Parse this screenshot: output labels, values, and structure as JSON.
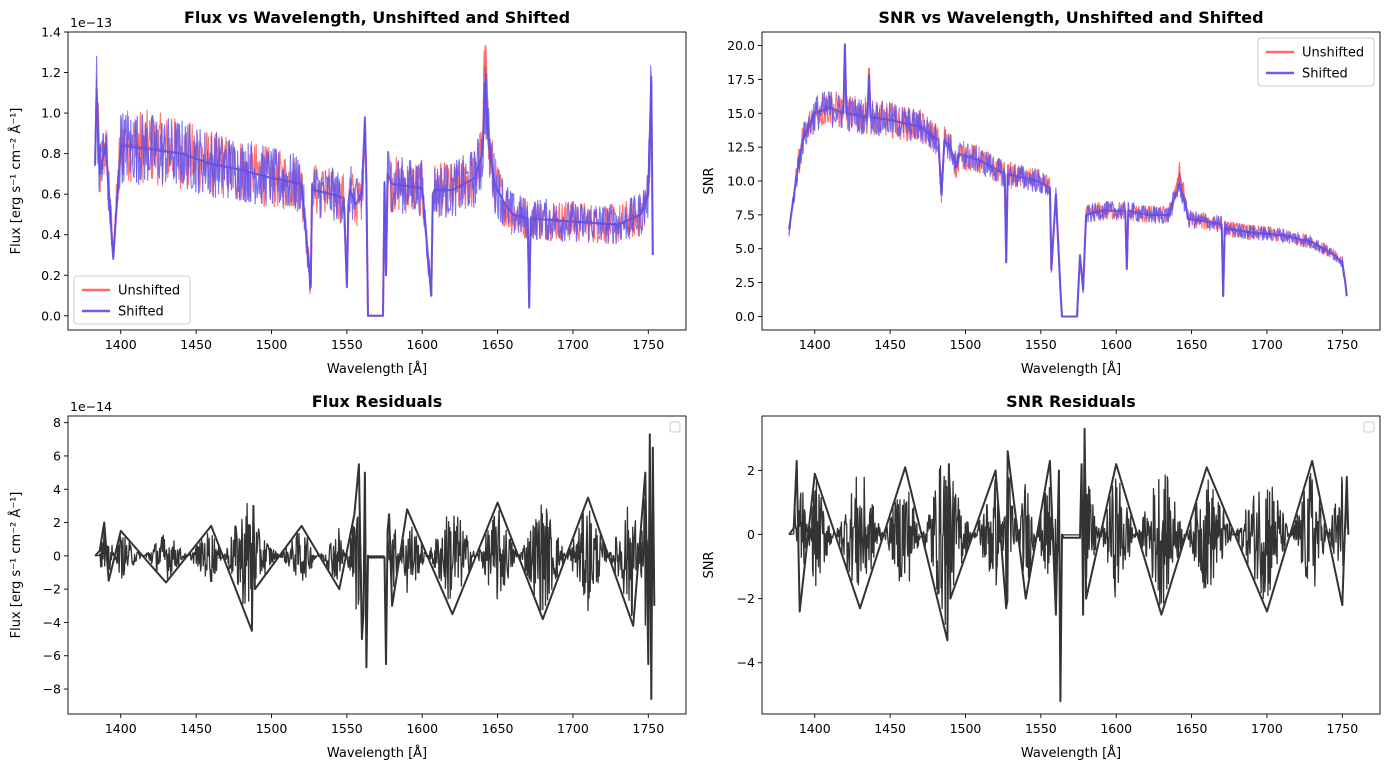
{
  "figure": {
    "colors": {
      "unshifted": "#ff5a5a",
      "shifted": "#5a50f0",
      "overlap": "#6a28c8",
      "residual": "#333333"
    }
  },
  "chart_data": [
    {
      "type": "line",
      "title": "Flux vs Wavelength, Unshifted and Shifted",
      "xlabel": "Wavelength [Å]",
      "ylabel": "Flux [erg s⁻¹ cm⁻² Å⁻¹]",
      "offset_label": "1e−13",
      "xlim": [
        1365,
        1775
      ],
      "ylim": [
        -0.07,
        1.4
      ],
      "xticks": [
        1400,
        1450,
        1500,
        1550,
        1600,
        1650,
        1700,
        1750
      ],
      "yticks": [
        0.0,
        0.2,
        0.4,
        0.6,
        0.8,
        1.0,
        1.2,
        1.4
      ],
      "ytick_labels": [
        "0.0",
        "0.2",
        "0.4",
        "0.6",
        "0.8",
        "1.0",
        "1.2",
        "1.4"
      ],
      "legend": {
        "position": "lower-left",
        "entries": [
          "Unshifted",
          "Shifted"
        ]
      },
      "grid": false,
      "series": [
        {
          "name": "Unshifted",
          "color": "#ff5a5a",
          "x": [
            1383,
            1384,
            1386,
            1390,
            1395,
            1400,
            1420,
            1440,
            1460,
            1480,
            1500,
            1520,
            1526,
            1527,
            1528,
            1540,
            1548,
            1550,
            1551,
            1552,
            1556,
            1560,
            1562,
            1563,
            1563.5,
            1564,
            1574,
            1575,
            1576,
            1577,
            1580,
            1600,
            1606,
            1607,
            1608,
            1620,
            1635,
            1640,
            1642,
            1644,
            1648,
            1655,
            1660,
            1670,
            1671,
            1672,
            1690,
            1710,
            1730,
            1745,
            1750,
            1752,
            1753
          ],
          "y": [
            0.75,
            1.1,
            0.7,
            0.85,
            0.3,
            0.85,
            0.83,
            0.8,
            0.75,
            0.72,
            0.68,
            0.65,
            0.15,
            0.65,
            0.62,
            0.6,
            0.58,
            0.15,
            0.55,
            0.62,
            0.55,
            0.6,
            0.95,
            0.65,
            0.3,
            0.0,
            0.0,
            0.65,
            0.2,
            0.7,
            0.65,
            0.63,
            0.1,
            0.6,
            0.62,
            0.62,
            0.68,
            0.8,
            1.33,
            0.85,
            0.65,
            0.55,
            0.5,
            0.48,
            0.05,
            0.48,
            0.47,
            0.46,
            0.45,
            0.5,
            0.6,
            1.15,
            0.3
          ]
        },
        {
          "name": "Shifted",
          "color": "#5a50f0",
          "x": [
            1383,
            1384,
            1386,
            1390,
            1395,
            1400,
            1420,
            1440,
            1460,
            1480,
            1500,
            1520,
            1526,
            1527,
            1528,
            1540,
            1548,
            1550,
            1551,
            1552,
            1556,
            1560,
            1562,
            1563,
            1563.5,
            1564,
            1574,
            1575,
            1576,
            1577,
            1580,
            1600,
            1606,
            1607,
            1608,
            1620,
            1635,
            1640,
            1642,
            1644,
            1648,
            1655,
            1660,
            1670,
            1671,
            1672,
            1690,
            1710,
            1730,
            1745,
            1750,
            1752,
            1753
          ],
          "y": [
            0.74,
            1.12,
            0.7,
            0.84,
            0.28,
            0.84,
            0.82,
            0.8,
            0.75,
            0.72,
            0.68,
            0.65,
            0.14,
            0.65,
            0.62,
            0.6,
            0.58,
            0.14,
            0.55,
            0.62,
            0.55,
            0.6,
            0.98,
            0.65,
            0.3,
            0.0,
            0.0,
            0.66,
            0.2,
            0.7,
            0.65,
            0.63,
            0.1,
            0.6,
            0.62,
            0.62,
            0.68,
            0.8,
            1.15,
            0.85,
            0.65,
            0.55,
            0.5,
            0.48,
            0.04,
            0.48,
            0.47,
            0.46,
            0.45,
            0.5,
            0.6,
            1.18,
            0.3
          ]
        }
      ]
    },
    {
      "type": "line",
      "title": "SNR vs Wavelength, Unshifted and Shifted",
      "xlabel": "Wavelength [Å]",
      "ylabel": "SNR",
      "xlim": [
        1365,
        1775
      ],
      "ylim": [
        -1.0,
        21.0
      ],
      "xticks": [
        1400,
        1450,
        1500,
        1550,
        1600,
        1650,
        1700,
        1750
      ],
      "yticks": [
        0.0,
        2.5,
        5.0,
        7.5,
        10.0,
        12.5,
        15.0,
        17.5,
        20.0
      ],
      "ytick_labels": [
        "0.0",
        "2.5",
        "5.0",
        "7.5",
        "10.0",
        "12.5",
        "15.0",
        "17.5",
        "20.0"
      ],
      "legend": {
        "position": "upper-right",
        "entries": [
          "Unshifted",
          "Shifted"
        ]
      },
      "grid": false,
      "series": [
        {
          "name": "Unshifted",
          "color": "#ff5a5a",
          "x": [
            1383,
            1385,
            1388,
            1392,
            1396,
            1400,
            1410,
            1419,
            1420,
            1421,
            1435,
            1436,
            1437,
            1450,
            1470,
            1482,
            1484,
            1486,
            1490,
            1494,
            1496,
            1510,
            1526,
            1527,
            1528,
            1540,
            1548,
            1556,
            1557,
            1560,
            1563,
            1564,
            1574,
            1576,
            1578,
            1580,
            1590,
            1606,
            1607,
            1608,
            1620,
            1635,
            1642,
            1648,
            1660,
            1670,
            1671,
            1672,
            1690,
            1710,
            1730,
            1745,
            1750,
            1752,
            1753
          ],
          "y": [
            6.5,
            8.0,
            10.5,
            13.0,
            14.0,
            15.0,
            15.5,
            15.0,
            20.0,
            15.0,
            14.8,
            18.3,
            14.8,
            14.5,
            14.0,
            13.0,
            9.0,
            13.0,
            12.5,
            11.0,
            12.0,
            11.5,
            10.5,
            4.0,
            10.5,
            10.2,
            10.0,
            9.5,
            3.5,
            9.0,
            2.0,
            0.0,
            0.0,
            4.5,
            2.0,
            7.5,
            7.8,
            7.8,
            3.5,
            7.8,
            7.5,
            7.5,
            10.5,
            7.2,
            7.0,
            6.8,
            1.5,
            6.5,
            6.2,
            6.0,
            5.5,
            4.5,
            4.0,
            2.5,
            1.5
          ]
        },
        {
          "name": "Shifted",
          "color": "#5a50f0",
          "x": [
            1383,
            1385,
            1388,
            1392,
            1396,
            1400,
            1410,
            1419,
            1420,
            1421,
            1435,
            1436,
            1437,
            1450,
            1470,
            1482,
            1484,
            1486,
            1490,
            1494,
            1496,
            1510,
            1526,
            1527,
            1528,
            1540,
            1548,
            1556,
            1557,
            1560,
            1563,
            1564,
            1574,
            1576,
            1578,
            1580,
            1590,
            1606,
            1607,
            1608,
            1620,
            1635,
            1642,
            1648,
            1660,
            1670,
            1671,
            1672,
            1690,
            1710,
            1730,
            1745,
            1750,
            1752,
            1753
          ],
          "y": [
            6.4,
            8.0,
            10.4,
            13.0,
            14.0,
            15.0,
            15.4,
            15.0,
            20.1,
            15.0,
            14.7,
            17.8,
            14.7,
            14.5,
            14.0,
            13.0,
            9.0,
            13.0,
            12.5,
            11.0,
            12.0,
            11.5,
            10.5,
            4.0,
            10.5,
            10.2,
            10.0,
            9.5,
            3.5,
            9.0,
            2.0,
            0.0,
            0.0,
            4.5,
            2.0,
            7.5,
            7.8,
            7.8,
            3.5,
            7.8,
            7.5,
            7.5,
            9.8,
            7.2,
            7.0,
            6.8,
            1.5,
            6.5,
            6.2,
            6.0,
            5.5,
            4.5,
            4.0,
            2.5,
            1.5
          ]
        }
      ]
    },
    {
      "type": "line",
      "title": "Flux Residuals",
      "xlabel": "Wavelength [Å]",
      "ylabel": "Flux [erg s⁻¹ cm⁻² Å⁻¹]",
      "offset_label": "1e−14",
      "xlim": [
        1365,
        1775
      ],
      "ylim": [
        -9.5,
        8.4
      ],
      "xticks": [
        1400,
        1450,
        1500,
        1550,
        1600,
        1650,
        1700,
        1750
      ],
      "yticks": [
        -8,
        -6,
        -4,
        -2,
        0,
        2,
        4,
        6,
        8
      ],
      "ytick_labels": [
        "−8",
        "−6",
        "−4",
        "−2",
        "0",
        "2",
        "4",
        "6",
        "8"
      ],
      "legend": {
        "position": "upper-right",
        "entries": []
      },
      "grid": false,
      "series": [
        {
          "color": "#333333",
          "x": [
            1383,
            1386,
            1389,
            1392,
            1400,
            1430,
            1460,
            1487,
            1488,
            1489,
            1520,
            1545,
            1555,
            1558,
            1560,
            1561,
            1562,
            1563,
            1564,
            1565,
            1575,
            1576,
            1577,
            1578,
            1580,
            1590,
            1620,
            1650,
            1680,
            1710,
            1740,
            1748,
            1750,
            1751,
            1752,
            1753,
            1754
          ],
          "y": [
            0.0,
            0.3,
            2.0,
            -1.5,
            1.5,
            -1.6,
            1.8,
            -4.5,
            3.0,
            -2.0,
            1.8,
            -2.0,
            2.5,
            5.5,
            -5.0,
            -3.5,
            5.0,
            -6.7,
            0.0,
            -0.1,
            -0.1,
            -6.5,
            1.5,
            2.5,
            -3.0,
            2.8,
            -3.5,
            3.2,
            -3.8,
            3.5,
            -4.2,
            5.0,
            -6.5,
            7.3,
            -8.6,
            6.5,
            -3.0
          ]
        }
      ]
    },
    {
      "type": "line",
      "title": "SNR Residuals",
      "xlabel": "Wavelength [Å]",
      "ylabel": "SNR",
      "xlim": [
        1365,
        1775
      ],
      "ylim": [
        -5.6,
        3.7
      ],
      "xticks": [
        1400,
        1450,
        1500,
        1550,
        1600,
        1650,
        1700,
        1750
      ],
      "yticks": [
        -4,
        -2,
        0,
        2
      ],
      "ytick_labels": [
        "−4",
        "−2",
        "0",
        "2"
      ],
      "legend": {
        "position": "upper-right",
        "entries": []
      },
      "grid": false,
      "series": [
        {
          "color": "#333333",
          "x": [
            1383,
            1386,
            1388,
            1390,
            1400,
            1430,
            1460,
            1488,
            1489,
            1490,
            1520,
            1527,
            1528,
            1540,
            1556,
            1560,
            1562,
            1563,
            1564,
            1565,
            1576,
            1577,
            1578,
            1579,
            1580,
            1600,
            1630,
            1660,
            1700,
            1730,
            1750,
            1753,
            1754
          ],
          "y": [
            0.0,
            0.2,
            2.3,
            -2.4,
            1.9,
            -2.3,
            2.1,
            -3.3,
            2.2,
            -2.0,
            2.0,
            -2.3,
            2.6,
            -2.0,
            2.3,
            -2.5,
            2.0,
            -5.2,
            0.0,
            -0.1,
            -0.1,
            2.2,
            -2.5,
            3.3,
            -2.0,
            2.2,
            -2.5,
            2.1,
            -2.4,
            2.3,
            -2.2,
            1.8,
            0.0
          ]
        }
      ]
    }
  ]
}
